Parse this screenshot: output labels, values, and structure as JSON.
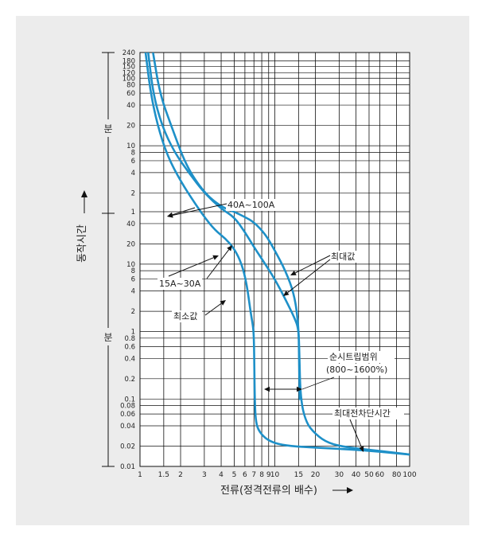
{
  "chart_data": {
    "type": "line",
    "xscale": "log",
    "yscale": "log",
    "x_ticks": [
      1,
      1.5,
      2,
      3,
      4,
      5,
      6,
      7,
      8,
      9,
      10,
      15,
      20,
      30,
      40,
      50,
      60,
      80,
      100
    ],
    "x_tick_labels": [
      "1",
      "1.5",
      "2",
      "3",
      "4",
      "5",
      "6",
      "7",
      "8",
      "9",
      "10",
      "15",
      "20",
      "30",
      "40",
      "50",
      "60",
      "80",
      "100"
    ],
    "xlabel": "전류(정격전류의 배수)",
    "ylabel": "동작시간",
    "minutes_ticks": [
      1,
      2,
      4,
      6,
      8,
      10,
      20,
      40,
      60,
      80,
      100,
      120,
      150,
      180,
      240
    ],
    "seconds_ticks": [
      0.01,
      0.02,
      0.04,
      0.06,
      0.08,
      0.1,
      0.2,
      0.4,
      0.6,
      0.8,
      1,
      2,
      4,
      6,
      8,
      10,
      20,
      40
    ],
    "minutes_unit_label": "분",
    "seconds_unit_label": "분",
    "grid": true,
    "curve_color": "#1e90c8",
    "series": [
      {
        "x": [
          1.1,
          1.2,
          1.35,
          1.6,
          2,
          2.5,
          3,
          3.6,
          4.3,
          5,
          5.7,
          6.2,
          6.6,
          6.9,
          7,
          7.05,
          7.1,
          7.2,
          7.5,
          8.5,
          10,
          13,
          20,
          35,
          60,
          100
        ],
        "y_seconds": [
          14400,
          3600,
          1200,
          420,
          180,
          90,
          50,
          32,
          24,
          17,
          10,
          5,
          2,
          1.2,
          0.8,
          0.3,
          0.1,
          0.05,
          0.035,
          0.026,
          0.022,
          0.02,
          0.019,
          0.018,
          0.0165,
          0.015
        ]
      },
      {
        "x": [
          1.15,
          1.25,
          1.45,
          1.8,
          2.3,
          3,
          4,
          5,
          6,
          7,
          8.5,
          10,
          12,
          14,
          15,
          15.2,
          15.5,
          17,
          20,
          25,
          35,
          60,
          100
        ],
        "y_seconds": [
          14400,
          3600,
          1200,
          480,
          240,
          120,
          70,
          50,
          30,
          18,
          10,
          6,
          3,
          1.6,
          1.1,
          0.5,
          0.1,
          0.045,
          0.03,
          0.022,
          0.019,
          0.017,
          0.015
        ]
      },
      {
        "x": [
          1.25,
          1.4,
          1.7,
          2.2,
          3,
          4,
          5,
          6,
          7,
          8.5,
          10,
          12,
          14,
          15,
          15.1,
          15.3
        ],
        "y_seconds": [
          14400,
          3600,
          1200,
          300,
          120,
          75,
          60,
          50,
          42,
          28,
          16,
          8,
          3.5,
          1.2,
          0.5,
          0.1
        ]
      }
    ],
    "annotations": [
      "40A~100A",
      "15A~30A",
      "최대값",
      "최소값",
      "순시트립범위",
      "(800~1600%)",
      "최대전차단시간"
    ]
  }
}
